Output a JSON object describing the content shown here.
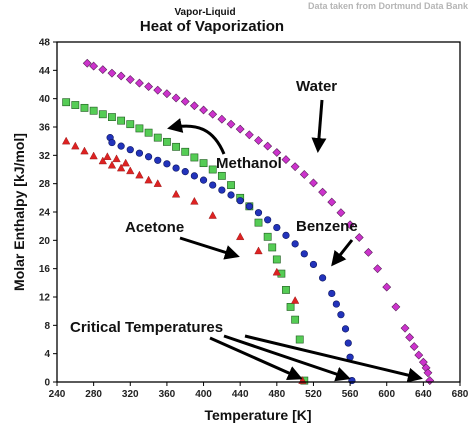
{
  "source_note": "Data taken from Dortmund Data Bank",
  "chart_data": {
    "type": "scatter",
    "subtitle": "Vapor-Liquid",
    "title": "Heat of Vaporization",
    "xlabel": "Temperature [K]",
    "ylabel": "Molar Enthalpy [kJ/mol]",
    "xlim": [
      240,
      680
    ],
    "ylim": [
      0,
      48
    ],
    "xticks": [
      240,
      280,
      320,
      360,
      400,
      440,
      480,
      520,
      560,
      600,
      640,
      680
    ],
    "yticks": [
      0,
      4,
      8,
      12,
      16,
      20,
      24,
      28,
      32,
      36,
      40,
      44,
      48
    ],
    "grid": false,
    "legend": "none",
    "colors": {
      "water": "#cc33cc",
      "methanol": "#55cc55",
      "benzene": "#2233bb",
      "acetone": "#dd2222"
    },
    "series": [
      {
        "key": "water",
        "marker": "diamond",
        "x": [
          273,
          280,
          290,
          300,
          310,
          320,
          330,
          340,
          350,
          360,
          370,
          380,
          390,
          400,
          410,
          420,
          430,
          440,
          450,
          460,
          470,
          480,
          490,
          500,
          510,
          520,
          530,
          540,
          550,
          560,
          570,
          580,
          590,
          600,
          610,
          620,
          625,
          630,
          635,
          640,
          643,
          645,
          647
        ],
        "y": [
          45.0,
          44.6,
          44.1,
          43.6,
          43.2,
          42.7,
          42.2,
          41.7,
          41.2,
          40.7,
          40.1,
          39.6,
          39.0,
          38.4,
          37.8,
          37.1,
          36.4,
          35.7,
          34.9,
          34.1,
          33.3,
          32.4,
          31.4,
          30.4,
          29.3,
          28.1,
          26.8,
          25.4,
          23.9,
          22.2,
          20.4,
          18.3,
          16.0,
          13.4,
          10.6,
          7.6,
          6.3,
          5.0,
          3.8,
          2.8,
          2.0,
          1.3,
          0.2
        ]
      },
      {
        "key": "methanol",
        "marker": "square",
        "x": [
          250,
          260,
          270,
          280,
          290,
          300,
          310,
          320,
          330,
          340,
          350,
          360,
          370,
          380,
          390,
          400,
          410,
          420,
          430,
          440,
          450,
          460,
          470,
          475,
          480,
          485,
          490,
          495,
          500,
          505,
          510
        ],
        "y": [
          39.5,
          39.1,
          38.7,
          38.3,
          37.8,
          37.4,
          36.9,
          36.4,
          35.8,
          35.2,
          34.5,
          33.9,
          33.2,
          32.5,
          31.7,
          30.9,
          30.0,
          29.1,
          27.8,
          26.0,
          24.8,
          22.5,
          20.5,
          19.0,
          17.3,
          15.3,
          13.0,
          10.6,
          8.8,
          6.0,
          0.2
        ]
      },
      {
        "key": "benzene",
        "marker": "circle",
        "x": [
          298,
          300,
          310,
          320,
          330,
          340,
          350,
          360,
          370,
          380,
          390,
          400,
          410,
          420,
          430,
          440,
          450,
          460,
          470,
          480,
          490,
          500,
          510,
          520,
          530,
          540,
          545,
          550,
          555,
          558,
          560,
          562
        ],
        "y": [
          34.5,
          33.8,
          33.3,
          32.8,
          32.3,
          31.8,
          31.3,
          30.8,
          30.2,
          29.7,
          29.1,
          28.5,
          27.8,
          27.1,
          26.4,
          25.6,
          24.8,
          23.9,
          22.9,
          21.8,
          20.7,
          19.5,
          18.1,
          16.6,
          14.7,
          12.5,
          11.0,
          9.5,
          7.5,
          5.5,
          3.5,
          0.2
        ]
      },
      {
        "key": "acetone",
        "marker": "triangle",
        "x": [
          250,
          260,
          270,
          280,
          290,
          295,
          300,
          305,
          310,
          315,
          320,
          330,
          340,
          350,
          370,
          390,
          410,
          440,
          460,
          480,
          500,
          508
        ],
        "y": [
          34.0,
          33.3,
          32.6,
          31.9,
          31.2,
          31.8,
          30.6,
          31.5,
          30.2,
          30.9,
          29.8,
          29.2,
          28.5,
          28.0,
          26.5,
          25.5,
          23.5,
          20.5,
          18.5,
          15.5,
          11.5,
          0.2
        ]
      }
    ],
    "annotations": [
      {
        "key": "water",
        "text": "Water"
      },
      {
        "key": "methanol",
        "text": "Methanol"
      },
      {
        "key": "benzene",
        "text": "Benzene"
      },
      {
        "key": "acetone",
        "text": "Acetone"
      },
      {
        "key": "critical",
        "text": "Critical Temperatures"
      }
    ]
  }
}
